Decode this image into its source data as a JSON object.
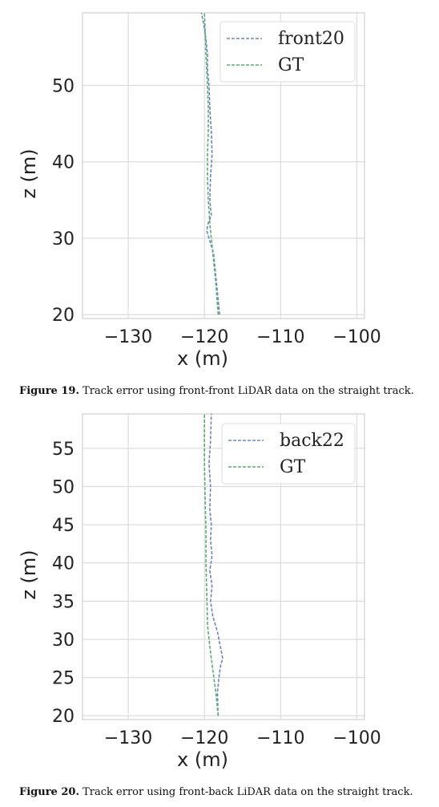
{
  "chart_data": [
    {
      "type": "line",
      "title": "",
      "xlabel": "x (m)",
      "ylabel": "z (m)",
      "xlim": [
        -136,
        -99
      ],
      "ylim": [
        19.5,
        59.5
      ],
      "xticks": [
        -130,
        -120,
        -110,
        -100
      ],
      "xtick_labels": [
        "−130",
        "−120",
        "−110",
        "−100"
      ],
      "yticks": [
        20,
        30,
        40,
        50
      ],
      "ytick_labels": [
        "20",
        "30",
        "40",
        "50"
      ],
      "grid": true,
      "legend_position": "top-right",
      "series": [
        {
          "name": "front20",
          "color": "#6a85be",
          "style": "dashed",
          "x": [
            -118.0,
            -118.2,
            -118.4,
            -118.6,
            -118.8,
            -119.1,
            -119.4,
            -119.7,
            -119.5,
            -119.1,
            -119.3,
            -119.2,
            -119.0,
            -119.1,
            -119.3,
            -119.4,
            -119.6,
            -119.6,
            -119.8,
            -120.1,
            -120.4
          ],
          "y": [
            20,
            22,
            24,
            26,
            28,
            29,
            30,
            31,
            32,
            33,
            35,
            38,
            41,
            44,
            47,
            50,
            52,
            54,
            56,
            58,
            59.5
          ]
        },
        {
          "name": "GT",
          "color": "#5caa73",
          "style": "dashed",
          "x": [
            -118.2,
            -118.5,
            -118.9,
            -119.3,
            -119.5,
            -119.6,
            -119.6,
            -119.5,
            -119.5,
            -119.6,
            -119.8,
            -119.9,
            -120.0
          ],
          "y": [
            20,
            24,
            28,
            32,
            35,
            38,
            41,
            44,
            47,
            50,
            54,
            57,
            59.5
          ]
        }
      ]
    },
    {
      "type": "line",
      "title": "",
      "xlabel": "x (m)",
      "ylabel": "z (m)",
      "xlim": [
        -136,
        -99
      ],
      "ylim": [
        19.5,
        59.5
      ],
      "xticks": [
        -130,
        -120,
        -110,
        -100
      ],
      "xtick_labels": [
        "−130",
        "−120",
        "−110",
        "−100"
      ],
      "yticks": [
        20,
        25,
        30,
        35,
        40,
        45,
        50,
        55
      ],
      "ytick_labels": [
        "20",
        "25",
        "30",
        "35",
        "40",
        "45",
        "50",
        "55"
      ],
      "grid": true,
      "legend_position": "top-right",
      "series": [
        {
          "name": "back22",
          "color": "#6a85be",
          "style": "dashed",
          "x": [
            -118.2,
            -118.3,
            -118.1,
            -117.9,
            -117.6,
            -117.9,
            -118.3,
            -118.9,
            -119.2,
            -119.0,
            -119.3,
            -119.0,
            -119.2,
            -119.1,
            -119.3,
            -119.2,
            -119.4,
            -119.2,
            -119.1
          ],
          "y": [
            20,
            23,
            25,
            26.5,
            27.5,
            29,
            31,
            33,
            35,
            37,
            39,
            41,
            43,
            45,
            47,
            50,
            53,
            56,
            59.5
          ]
        },
        {
          "name": "GT",
          "color": "#5caa73",
          "style": "dashed",
          "x": [
            -118.2,
            -118.5,
            -118.9,
            -119.3,
            -119.6,
            -119.7,
            -119.8,
            -119.8,
            -119.9,
            -120.0,
            -120.0
          ],
          "y": [
            20,
            23,
            26,
            29,
            32,
            36,
            40,
            44,
            48,
            53,
            59.5
          ]
        }
      ]
    }
  ],
  "captions": [
    {
      "label": "Figure 19.",
      "text": " Track error using front-front LiDAR data on the straight track."
    },
    {
      "label": "Figure 20.",
      "text": " Track error using front-back LiDAR data on the straight track."
    }
  ]
}
